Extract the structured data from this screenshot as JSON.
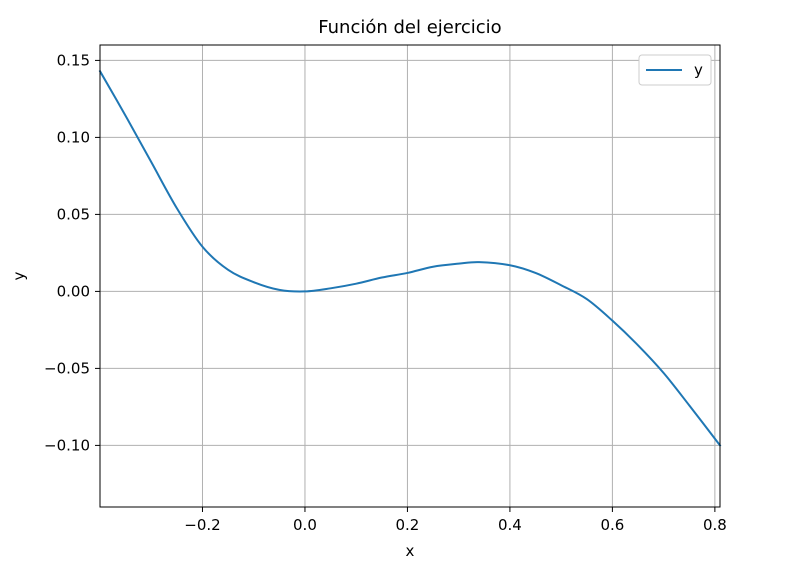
{
  "chart_data": {
    "type": "line",
    "title": "Función del ejercicio",
    "xlabel": "x",
    "ylabel": "y",
    "xlim": [
      -0.4,
      0.81
    ],
    "ylim": [
      -0.14,
      0.16
    ],
    "x_ticks": [
      -0.2,
      0.0,
      0.2,
      0.4,
      0.6,
      0.8
    ],
    "x_tick_labels": [
      "−0.2",
      "0.0",
      "0.2",
      "0.4",
      "0.6",
      "0.8"
    ],
    "y_ticks": [
      0.15,
      0.1,
      0.05,
      0.0,
      -0.05,
      -0.1
    ],
    "y_tick_labels": [
      "0.15",
      "0.10",
      "0.05",
      "0.00",
      "−0.05",
      "−0.10"
    ],
    "grid": true,
    "legend_position": "top-right",
    "series": [
      {
        "name": "y",
        "color": "#1f77b4",
        "x": [
          -0.4,
          -0.35,
          -0.3,
          -0.25,
          -0.2,
          -0.15,
          -0.1,
          -0.05,
          0.0,
          0.05,
          0.1,
          0.15,
          0.2,
          0.25,
          0.3,
          0.34,
          0.4,
          0.45,
          0.5,
          0.55,
          0.6,
          0.65,
          0.7,
          0.75,
          0.81
        ],
        "y": [
          0.143,
          0.114,
          0.084,
          0.054,
          0.029,
          0.014,
          0.006,
          0.001,
          0.0,
          0.002,
          0.005,
          0.009,
          0.012,
          0.016,
          0.018,
          0.019,
          0.017,
          0.012,
          0.004,
          -0.005,
          -0.019,
          -0.035,
          -0.053,
          -0.074,
          -0.1
        ]
      }
    ]
  }
}
